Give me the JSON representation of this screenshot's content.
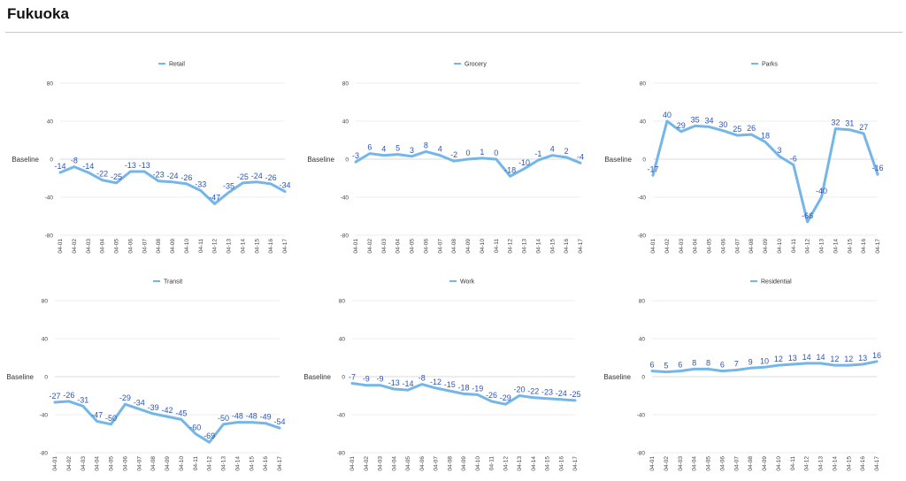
{
  "header": {
    "title": "Fukuoka"
  },
  "chart_data": [
    {
      "type": "line",
      "title": "Retail",
      "ylabel": "Baseline",
      "ylim": [
        -80,
        80
      ],
      "yticks": [
        "80",
        "40",
        "0",
        "-40",
        "-80"
      ],
      "categories": [
        "04-01",
        "04-02",
        "04-03",
        "04-04",
        "04-05",
        "04-06",
        "04-07",
        "04-08",
        "04-09",
        "04-10",
        "04-11",
        "04-12",
        "04-13",
        "04-14",
        "04-15",
        "04-16",
        "04-17"
      ],
      "series": [
        {
          "name": "Retail",
          "values": [
            -14,
            -8,
            -14,
            -22,
            -25,
            -13,
            -13,
            -23,
            -24,
            -26,
            -33,
            -47,
            -35,
            -25,
            -24,
            -26,
            -34
          ]
        }
      ],
      "color": "#74b6e8",
      "legend": "top-center",
      "grid": true
    },
    {
      "type": "line",
      "title": "Grocery",
      "ylabel": "Baseline",
      "ylim": [
        -80,
        80
      ],
      "yticks": [
        "80",
        "40",
        "0",
        "-40",
        "-80"
      ],
      "categories": [
        "04-01",
        "04-02",
        "04-03",
        "04-04",
        "04-05",
        "04-06",
        "04-07",
        "04-08",
        "04-09",
        "04-10",
        "04-11",
        "04-12",
        "04-13",
        "04-14",
        "04-15",
        "04-16",
        "04-17"
      ],
      "series": [
        {
          "name": "Grocery",
          "values": [
            -3,
            6,
            4,
            5,
            3,
            8,
            4,
            -2,
            0,
            1,
            0,
            -18,
            -10,
            -1,
            4,
            2,
            -4
          ]
        }
      ],
      "color": "#74b6e8",
      "legend": "top-center",
      "grid": true
    },
    {
      "type": "line",
      "title": "Parks",
      "ylabel": "Baseline",
      "ylim": [
        -80,
        80
      ],
      "yticks": [
        "80",
        "40",
        "0",
        "-40",
        "-80"
      ],
      "categories": [
        "04-01",
        "04-02",
        "04-03",
        "04-04",
        "04-05",
        "04-06",
        "04-07",
        "04-08",
        "04-09",
        "04-10",
        "04-11",
        "04-12",
        "04-13",
        "04-14",
        "04-15",
        "04-16",
        "04-17"
      ],
      "series": [
        {
          "name": "Parks",
          "values": [
            -17,
            40,
            29,
            35,
            34,
            30,
            25,
            26,
            18,
            3,
            -6,
            -66,
            -40,
            32,
            31,
            27,
            -16
          ]
        }
      ],
      "color": "#74b6e8",
      "legend": "top-center",
      "grid": true
    },
    {
      "type": "line",
      "title": "Transit",
      "ylabel": "Baseline",
      "ylim": [
        -80,
        80
      ],
      "yticks": [
        "80",
        "40",
        "0",
        "-40",
        "-80"
      ],
      "categories": [
        "04-01",
        "04-02",
        "04-03",
        "04-04",
        "04-05",
        "04-06",
        "04-07",
        "04-08",
        "04-09",
        "04-10",
        "04-11",
        "04-12",
        "04-13",
        "04-14",
        "04-15",
        "04-16",
        "04-17"
      ],
      "series": [
        {
          "name": "Transit",
          "values": [
            -27,
            -26,
            -31,
            -47,
            -50,
            -29,
            -34,
            -39,
            -42,
            -45,
            -60,
            -69,
            -50,
            -48,
            -48,
            -49,
            -54
          ]
        }
      ],
      "color": "#74b6e8",
      "legend": "top-center",
      "grid": true
    },
    {
      "type": "line",
      "title": "Work",
      "ylabel": "Baseline",
      "ylim": [
        -80,
        80
      ],
      "yticks": [
        "80",
        "40",
        "0",
        "-40",
        "-80"
      ],
      "categories": [
        "04-01",
        "04-02",
        "04-03",
        "04-04",
        "04-05",
        "04-06",
        "04-07",
        "04-08",
        "04-09",
        "04-10",
        "04-11",
        "04-12",
        "04-13",
        "04-14",
        "04-15",
        "04-16",
        "04-17"
      ],
      "series": [
        {
          "name": "Work",
          "values": [
            -7,
            -9,
            -9,
            -13,
            -14,
            -8,
            -12,
            -15,
            -18,
            -19,
            -26,
            -29,
            -20,
            -22,
            -23,
            -24,
            -25
          ]
        }
      ],
      "color": "#74b6e8",
      "legend": "top-center",
      "grid": true
    },
    {
      "type": "line",
      "title": "Residential",
      "ylabel": "Baseline",
      "ylim": [
        -80,
        80
      ],
      "yticks": [
        "80",
        "40",
        "0",
        "-40",
        "-80"
      ],
      "categories": [
        "04-01",
        "04-02",
        "04-03",
        "04-04",
        "04-05",
        "04-06",
        "04-07",
        "04-08",
        "04-09",
        "04-10",
        "04-11",
        "04-12",
        "04-13",
        "04-14",
        "04-15",
        "04-16",
        "04-17"
      ],
      "series": [
        {
          "name": "Residential",
          "values": [
            6,
            5,
            6,
            8,
            8,
            6,
            7,
            9,
            10,
            12,
            13,
            14,
            14,
            12,
            12,
            13,
            16
          ]
        }
      ],
      "color": "#74b6e8",
      "legend": "top-center",
      "grid": true
    }
  ]
}
